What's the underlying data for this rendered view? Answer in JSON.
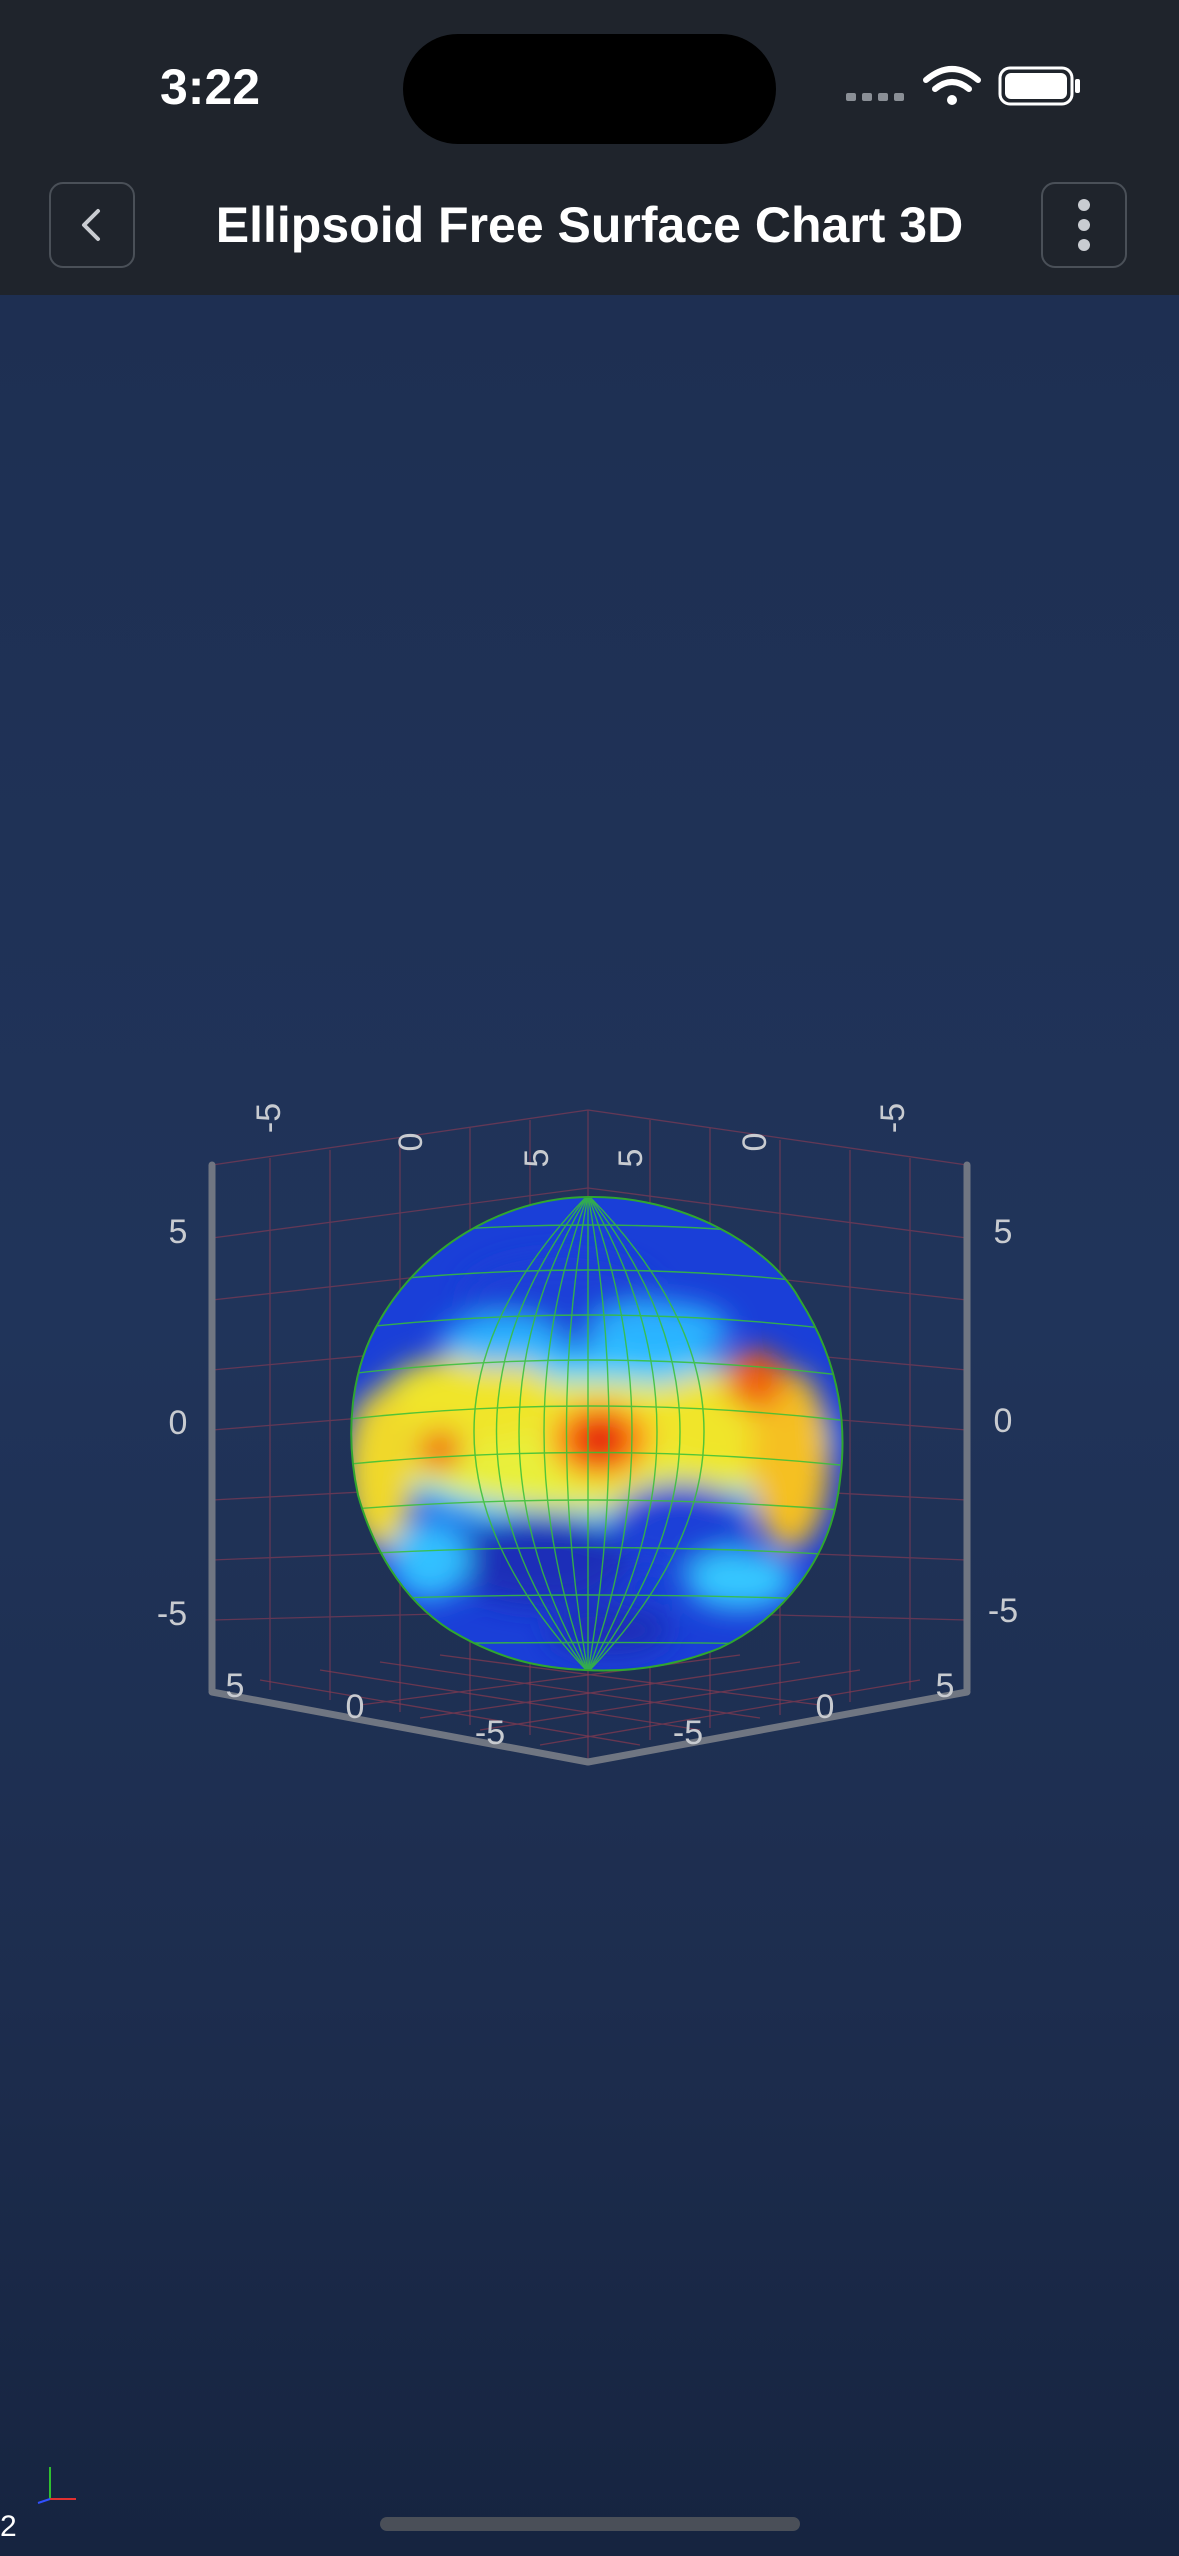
{
  "status_bar": {
    "time": "3:22"
  },
  "header": {
    "title": "Ellipsoid Free Surface Chart 3D"
  },
  "icons": {
    "back": "chevron-left-icon",
    "menu": "more-vertical-icon"
  },
  "chart_data": {
    "type": "surface",
    "title": "",
    "surface": "ellipsoid",
    "colormap": [
      "#0a1aa0",
      "#1e6fff",
      "#30d0ff",
      "#f5f02a",
      "#ff9a10",
      "#e01010"
    ],
    "mesh_color": "#2fbf2f",
    "x_ticks": [
      "5",
      "0",
      "-5"
    ],
    "z_ticks": [
      "-5",
      "0",
      "5"
    ],
    "y_ticks": [
      "5",
      "0",
      "-5"
    ],
    "top_back_ticks_left": [
      "-5",
      "0",
      "5"
    ],
    "top_back_ticks_right": [
      "5",
      "0",
      "-5"
    ],
    "xlim": [
      -6,
      6
    ],
    "ylim": [
      -6,
      6
    ],
    "zlim": [
      -6,
      6
    ],
    "grid": true
  },
  "corner_label": "2"
}
